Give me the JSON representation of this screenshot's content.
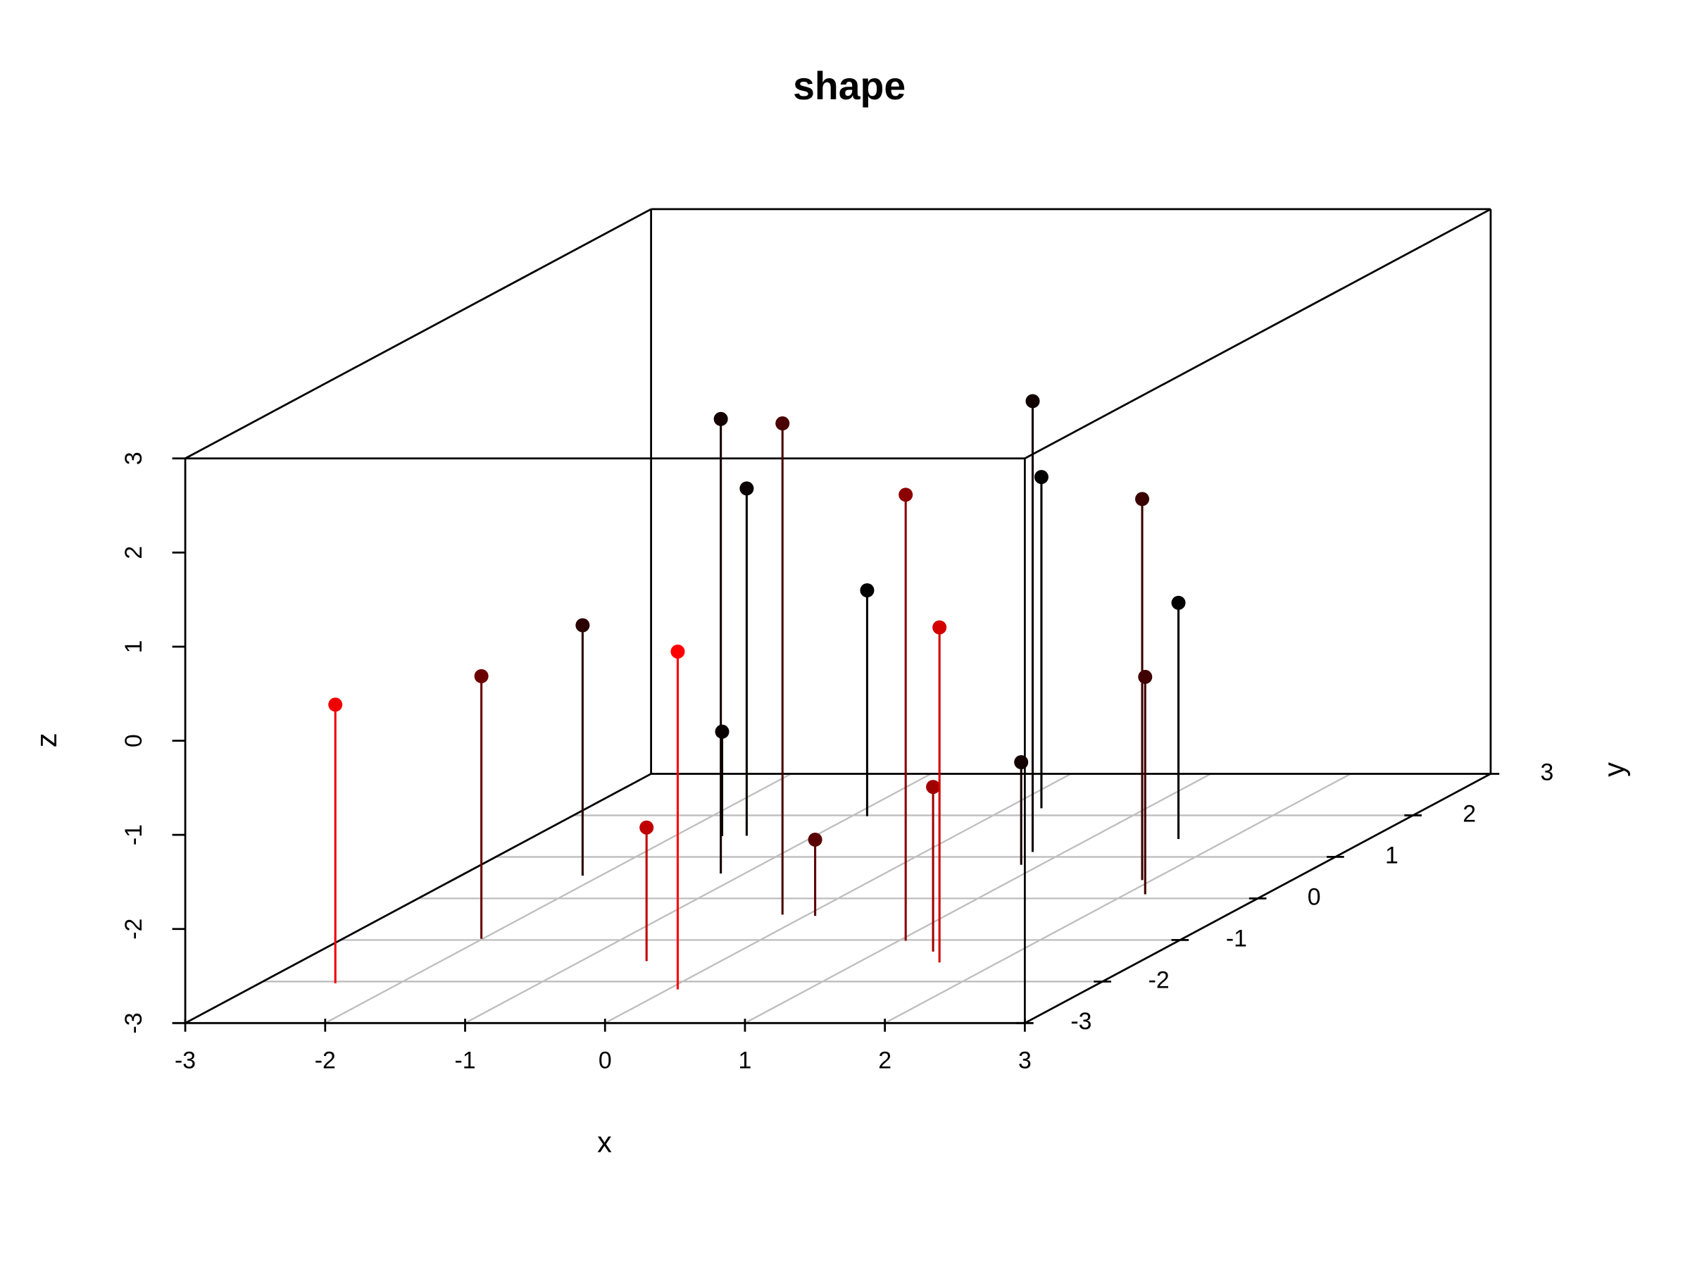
{
  "chart_data": {
    "type": "scatter3d",
    "title": "shape",
    "xlabel": "x",
    "ylabel": "y",
    "zlabel": "z",
    "xlim": [
      -3,
      3
    ],
    "ylim": [
      -3,
      3
    ],
    "zlim": [
      -3,
      3
    ],
    "xticks": [
      -3,
      -2,
      -1,
      0,
      1,
      2,
      3
    ],
    "yticks": [
      -3,
      -2,
      -1,
      0,
      1,
      2,
      3
    ],
    "zticks": [
      -3,
      -2,
      -1,
      0,
      1,
      2,
      3
    ],
    "grid": true,
    "grid_color": "#bebebe",
    "stems": true,
    "series": [
      {
        "x": [
          -2.01,
          -2.46,
          -2.13,
          -0.53,
          0.07,
          -1.17,
          -1.66,
          -1.49,
          -0.18,
          0.07,
          -0.89,
          1.05,
          1.39,
          1.58,
          0.86,
          0.77,
          0.25,
          1.93,
          2.14,
          1.64
        ],
        "y": [
          -0.97,
          -2.04,
          0.55,
          -1.51,
          -2.19,
          0.6,
          1.5,
          1.51,
          -0.39,
          -0.42,
          1.98,
          -1.02,
          -1.28,
          -1.54,
          0.81,
          1.12,
          2.17,
          0.44,
          0.1,
          1.43
        ],
        "z": [
          -0.21,
          -0.04,
          -0.34,
          -1.58,
          0.59,
          1.83,
          -1.89,
          0.69,
          2.22,
          -2.19,
          -0.6,
          1.74,
          -1.25,
          0.56,
          -1.91,
          1.79,
          0.52,
          1.05,
          -0.69,
          -0.49
        ],
        "colors": [
          "#6b0000",
          "#f00000",
          "#2a0000",
          "#c00000",
          "#ff0000",
          "#150000",
          "#0a0000",
          "#0a0000",
          "#4a0000",
          "#5a0000",
          "#000000",
          "#8b0000",
          "#a00000",
          "#d40000",
          "#150000",
          "#100000",
          "#000000",
          "#3a0000",
          "#400000",
          "#000000"
        ]
      }
    ]
  }
}
